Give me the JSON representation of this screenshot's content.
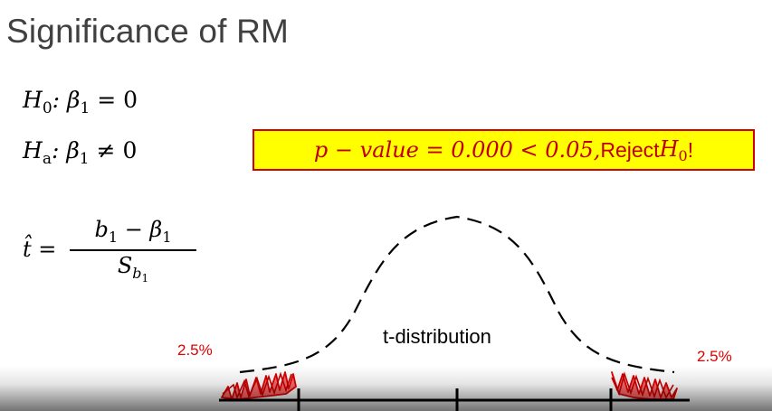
{
  "slide": {
    "title": "Significance of RM",
    "h0": {
      "label": "H",
      "sub": "0",
      "rest": ": β",
      "beta_sub": "1",
      "rel": " = 0"
    },
    "ha": {
      "label": "H",
      "sub": "a",
      "rest": ": β",
      "beta_sub": "1",
      "rel": " ≠ 0"
    },
    "result": {
      "expr": "p − value = 0.000 < 0.05,",
      "text": " Reject ",
      "h": "H",
      "h_sub": "0",
      "bang": "!"
    },
    "t_stat": {
      "lhs": "t̂ = ",
      "numerator_b": "b",
      "numerator_b_sub": "1",
      "numerator_minus": " − β",
      "numerator_beta_sub": "1",
      "denominator_s": "S",
      "denominator_sub": "b",
      "denominator_subsub": "1"
    },
    "left_tail_pct": "2.5%",
    "right_tail_pct": "2.5%",
    "distribution_label": "t-distribution"
  },
  "colors": {
    "title": "#404040",
    "accent_red": "#c00000",
    "box_fill": "#ffff00",
    "box_border": "#d00000",
    "tail_red": "#e00000"
  }
}
